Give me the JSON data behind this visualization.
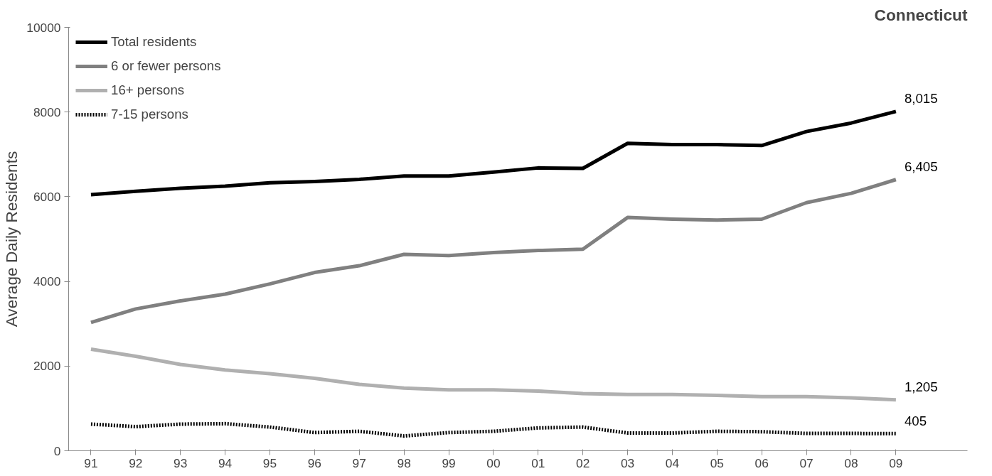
{
  "chart_data": {
    "type": "line",
    "title": "Connecticut",
    "ylabel": "Average Daily Residents",
    "categories": [
      "91",
      "92",
      "93",
      "94",
      "95",
      "96",
      "97",
      "98",
      "99",
      "00",
      "01",
      "02",
      "03",
      "04",
      "05",
      "06",
      "07",
      "08",
      "09"
    ],
    "ylim": [
      0,
      10000
    ],
    "yticks": [
      0,
      2000,
      4000,
      6000,
      8000,
      10000
    ],
    "grid": false,
    "legend": "top left",
    "marker": "none",
    "series": [
      {
        "name": "Total residents",
        "color": "#000000",
        "line_style": "solid",
        "values": [
          6050,
          6130,
          6200,
          6250,
          6330,
          6360,
          6410,
          6490,
          6490,
          6580,
          6680,
          6670,
          7260,
          7230,
          7230,
          7210,
          7540,
          7740,
          8015
        ],
        "value_labels": [
          null,
          null,
          null,
          null,
          null,
          null,
          null,
          null,
          null,
          null,
          null,
          null,
          null,
          null,
          null,
          null,
          null,
          null,
          "8,015"
        ]
      },
      {
        "name": "6 or fewer persons",
        "color": "#808080",
        "line_style": "solid",
        "values": [
          3030,
          3350,
          3540,
          3700,
          3940,
          4210,
          4370,
          4640,
          4610,
          4680,
          4730,
          4760,
          5510,
          5470,
          5450,
          5470,
          5860,
          6080,
          6405
        ],
        "value_labels": [
          null,
          null,
          null,
          null,
          null,
          null,
          null,
          null,
          null,
          null,
          null,
          null,
          null,
          null,
          null,
          null,
          null,
          null,
          "6,405"
        ]
      },
      {
        "name": "16+ persons",
        "color": "#b0b0b0",
        "line_style": "solid",
        "values": [
          2400,
          2230,
          2040,
          1910,
          1820,
          1710,
          1570,
          1480,
          1440,
          1440,
          1410,
          1350,
          1330,
          1330,
          1310,
          1280,
          1280,
          1250,
          1205
        ],
        "value_labels": [
          null,
          null,
          null,
          null,
          null,
          null,
          null,
          null,
          null,
          null,
          null,
          null,
          null,
          null,
          null,
          null,
          null,
          null,
          "1,205"
        ]
      },
      {
        "name": "7-15 persons",
        "color": "#000000",
        "line_style": "dotted",
        "values": [
          630,
          570,
          630,
          640,
          560,
          430,
          460,
          350,
          430,
          460,
          540,
          560,
          420,
          420,
          460,
          450,
          410,
          410,
          405
        ],
        "value_labels": [
          null,
          null,
          null,
          null,
          null,
          null,
          null,
          null,
          null,
          null,
          null,
          null,
          null,
          null,
          null,
          null,
          null,
          null,
          "405"
        ]
      }
    ]
  }
}
